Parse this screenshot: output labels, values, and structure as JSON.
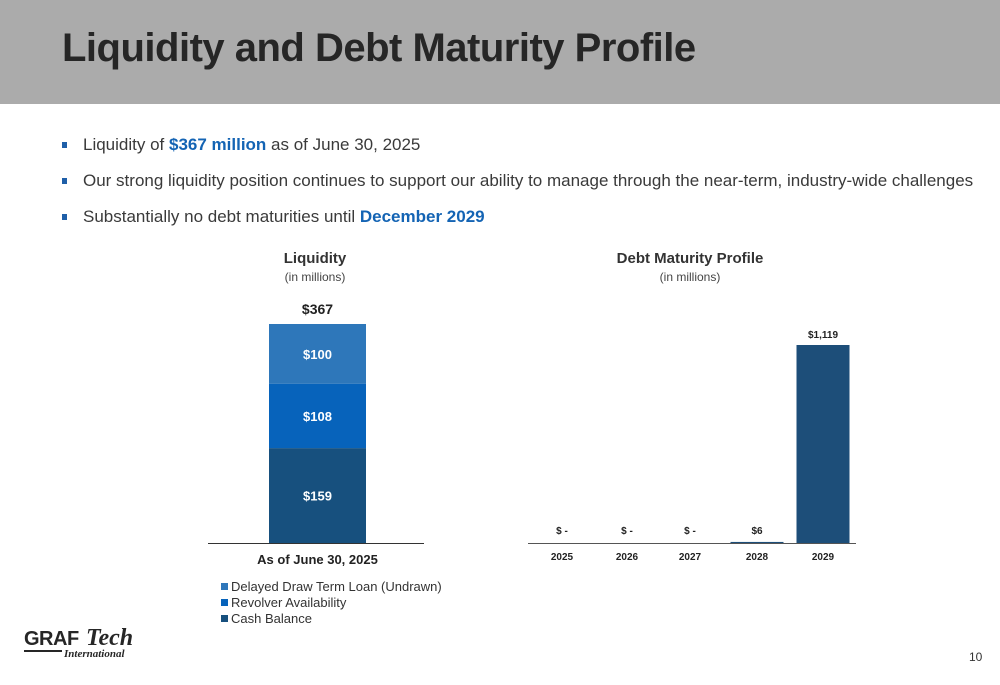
{
  "title": "Liquidity and Debt Maturity Profile",
  "bullets": [
    {
      "pre": "Liquidity of ",
      "highlight": "$367 million",
      "post": " as of June 30, 2025"
    },
    {
      "pre": "Our strong liquidity position continues to support our ability to manage through the near-term, industry-wide challenges",
      "highlight": "",
      "post": ""
    },
    {
      "pre": "Substantially no debt maturities until ",
      "highlight": "December 2029",
      "post": ""
    }
  ],
  "chart_data": [
    {
      "type": "bar",
      "stacked": true,
      "title": "Liquidity",
      "subtitle": "(in millions)",
      "categories": [
        "As of June 30, 2025"
      ],
      "total_label": "$367",
      "total": 367,
      "series": [
        {
          "name": "Cash Balance",
          "values": [
            159
          ],
          "labels": [
            "$159"
          ],
          "color": "#17507e"
        },
        {
          "name": "Revolver Availability",
          "values": [
            108
          ],
          "labels": [
            "$108"
          ],
          "color": "#0763bb"
        },
        {
          "name": "Delayed Draw Term Loan (Undrawn)",
          "values": [
            100
          ],
          "labels": [
            "$100"
          ],
          "color": "#2e77ba"
        }
      ],
      "legend_order": [
        "Delayed Draw Term Loan (Undrawn)",
        "Revolver Availability",
        "Cash Balance"
      ],
      "legend_position": "bottom-left",
      "grid": false
    },
    {
      "type": "bar",
      "title": "Debt Maturity Profile",
      "subtitle": "(in millions)",
      "categories": [
        "2025",
        "2026",
        "2027",
        "2028",
        "2029"
      ],
      "values": [
        0,
        0,
        0,
        6,
        1119
      ],
      "labels": [
        "$ -",
        "$ -",
        "$ -",
        "$6",
        "$1,119"
      ],
      "color": "#1d4e79",
      "grid": false
    }
  ],
  "page_number": "10",
  "logo": {
    "word1": "GRAF",
    "word2": "Tech",
    "word3": "International"
  }
}
